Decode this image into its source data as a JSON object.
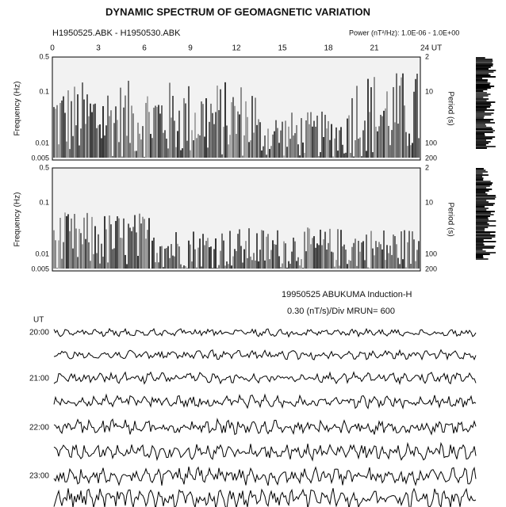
{
  "figure": {
    "title": "DYNAMIC SPECTRUM OF GEOMAGNETIC VARIATION",
    "files": "H1950525.ABK  -  H1950530.ABK",
    "power": "Power (nT²/Hz):  1.0E-06 - 1.0E+00",
    "time_ticks": [
      "0",
      "3",
      "6",
      "9",
      "12",
      "15",
      "18",
      "21",
      "24 UT"
    ],
    "panels": [
      {
        "freq_ticks": [
          "0.5",
          "0.1",
          "0.01",
          "0.005"
        ],
        "period_ticks": [
          "2",
          "10",
          "100",
          "200"
        ],
        "freq_label": "Frequency (Hz)",
        "period_label": "Period (s)"
      },
      {
        "freq_ticks": [
          "0.5",
          "0.1",
          "0.01",
          "0.005"
        ],
        "period_ticks": [
          "2",
          "10",
          "100",
          "200"
        ],
        "freq_label": "Frequency (Hz)",
        "period_label": "Period (s)"
      }
    ],
    "trace_header": "19950525  ABUKUMA   Induction-H",
    "trace_scale": "0.30 (nT/s)/Div      MRUN= 600",
    "trace_axis": "UT",
    "trace_times": [
      "20:00",
      "21:00",
      "22:00",
      "23:00"
    ]
  }
}
